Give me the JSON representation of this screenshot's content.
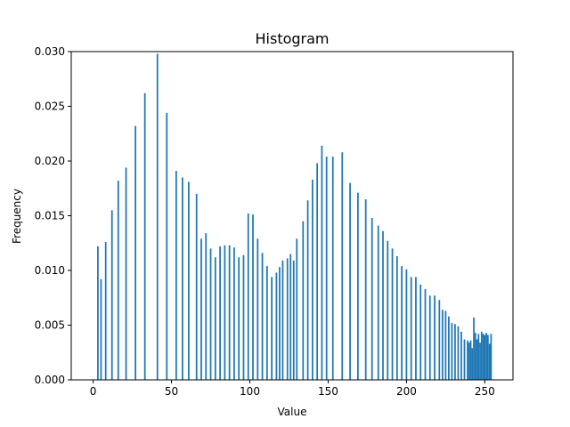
{
  "chart_data": {
    "type": "bar",
    "title": "Histogram",
    "xlabel": "Value",
    "ylabel": "Frequency",
    "xlim": [
      -14,
      268
    ],
    "ylim": [
      0,
      0.03
    ],
    "x_ticks": [
      0,
      50,
      100,
      150,
      200,
      250
    ],
    "x_tick_labels": [
      "0",
      "50",
      "100",
      "150",
      "200",
      "250"
    ],
    "y_ticks": [
      0,
      0.005,
      0.01,
      0.015,
      0.02,
      0.025,
      0.03
    ],
    "y_tick_labels": [
      "0.000",
      "0.005",
      "0.010",
      "0.015",
      "0.020",
      "0.025",
      "0.030"
    ],
    "bar_color": "#1f77b4",
    "bar_width": 1,
    "series": [
      {
        "x": [
          3,
          5,
          8,
          12,
          16,
          21,
          27,
          33,
          41,
          47,
          53,
          57,
          61,
          66,
          69,
          72,
          75,
          78,
          81,
          84,
          87,
          90,
          93,
          96,
          99,
          102,
          105,
          108,
          111,
          114,
          117,
          119,
          121,
          124,
          126,
          128,
          130,
          134,
          137,
          140,
          143,
          146,
          149,
          153,
          159,
          164,
          169,
          174,
          178,
          182,
          185,
          188,
          191,
          194,
          197,
          200,
          203,
          206,
          209,
          212,
          215,
          218,
          221,
          223,
          225,
          227,
          229,
          231,
          233,
          235,
          237,
          239,
          240,
          241,
          242,
          243,
          244,
          245,
          246,
          247,
          248,
          249,
          250,
          251,
          252,
          253,
          254
        ],
        "values": [
          0.0122,
          0.0092,
          0.0126,
          0.0155,
          0.0182,
          0.0194,
          0.0232,
          0.0262,
          0.0298,
          0.0244,
          0.0191,
          0.0185,
          0.0181,
          0.017,
          0.0129,
          0.0134,
          0.012,
          0.0112,
          0.0122,
          0.0123,
          0.0123,
          0.0121,
          0.0112,
          0.0114,
          0.0152,
          0.0151,
          0.0129,
          0.0116,
          0.0104,
          0.0094,
          0.0098,
          0.0103,
          0.0109,
          0.0111,
          0.0115,
          0.0109,
          0.0129,
          0.0145,
          0.0164,
          0.0183,
          0.0198,
          0.0214,
          0.0204,
          0.0204,
          0.0208,
          0.018,
          0.0171,
          0.0165,
          0.0148,
          0.0141,
          0.0136,
          0.0127,
          0.012,
          0.0113,
          0.0104,
          0.0101,
          0.0094,
          0.0094,
          0.0087,
          0.0083,
          0.0077,
          0.0077,
          0.0073,
          0.0064,
          0.0063,
          0.0058,
          0.0052,
          0.0051,
          0.0049,
          0.0044,
          0.0037,
          0.0036,
          0.0034,
          0.0036,
          0.0029,
          0.0057,
          0.0043,
          0.0037,
          0.0042,
          0.0034,
          0.0044,
          0.0042,
          0.0041,
          0.0043,
          0.0041,
          0.0033,
          0.0042
        ]
      }
    ]
  }
}
